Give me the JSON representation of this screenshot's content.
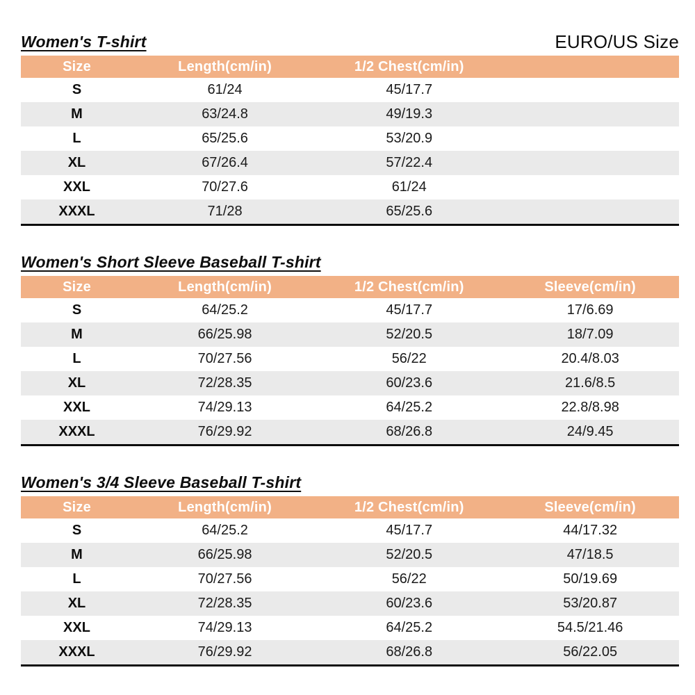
{
  "page": {
    "size_standard": "EURO/US Size",
    "colors": {
      "header_background": "#F2B186",
      "header_text": "#FFFFFF",
      "stripe_row": "#EAEAEA",
      "border": "#0D0D0D"
    }
  },
  "chart_data": [
    {
      "type": "table",
      "title": "Women's T-shirt",
      "columns": [
        "Size",
        "Length(cm/in)",
        "1/2 Chest(cm/in)",
        ""
      ],
      "rows": [
        [
          "S",
          "61/24",
          "45/17.7",
          ""
        ],
        [
          "M",
          "63/24.8",
          "49/19.3",
          ""
        ],
        [
          "L",
          "65/25.6",
          "53/20.9",
          ""
        ],
        [
          "XL",
          "67/26.4",
          "57/22.4",
          ""
        ],
        [
          "XXL",
          "70/27.6",
          "61/24",
          ""
        ],
        [
          "XXXL",
          "71/28",
          "65/25.6",
          ""
        ]
      ]
    },
    {
      "type": "table",
      "title": "Women's Short Sleeve Baseball T-shirt",
      "columns": [
        "Size",
        "Length(cm/in)",
        "1/2 Chest(cm/in)",
        "Sleeve(cm/in)"
      ],
      "rows": [
        [
          "S",
          "64/25.2",
          "45/17.7",
          "17/6.69"
        ],
        [
          "M",
          "66/25.98",
          "52/20.5",
          "18/7.09"
        ],
        [
          "L",
          "70/27.56",
          "56/22",
          "20.4/8.03"
        ],
        [
          "XL",
          "72/28.35",
          "60/23.6",
          "21.6/8.5"
        ],
        [
          "XXL",
          "74/29.13",
          "64/25.2",
          "22.8/8.98"
        ],
        [
          "XXXL",
          "76/29.92",
          "68/26.8",
          "24/9.45"
        ]
      ]
    },
    {
      "type": "table",
      "title": "Women's 3/4 Sleeve Baseball T-shirt",
      "columns": [
        "Size",
        "Length(cm/in)",
        "1/2 Chest(cm/in)",
        "Sleeve(cm/in)"
      ],
      "rows": [
        [
          "S",
          "64/25.2",
          "45/17.7",
          "44/17.32"
        ],
        [
          "M",
          "66/25.98",
          "52/20.5",
          "47/18.5"
        ],
        [
          "L",
          "70/27.56",
          "56/22",
          "50/19.69"
        ],
        [
          "XL",
          "72/28.35",
          "60/23.6",
          "53/20.87"
        ],
        [
          "XXL",
          "74/29.13",
          "64/25.2",
          "54.5/21.46"
        ],
        [
          "XXXL",
          "76/29.92",
          "68/26.8",
          "56/22.05"
        ]
      ]
    }
  ]
}
